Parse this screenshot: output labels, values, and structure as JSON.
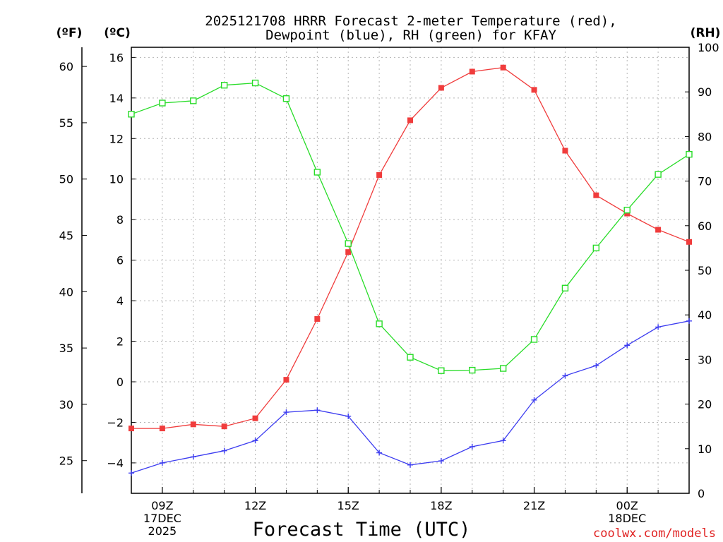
{
  "chart_data": {
    "type": "line",
    "title_line1": "2025121708 HRRR Forecast 2-meter Temperature (red),",
    "title_line2": "Dewpoint (blue), RH (green) for KFAY",
    "unit_f": "(ºF)",
    "unit_c": "(ºC)",
    "unit_rh": "(RH)",
    "xlabel": "Forecast Time (UTC)",
    "credit": "coolwx.com/models",
    "x_hours": [
      8,
      9,
      10,
      11,
      12,
      13,
      14,
      15,
      16,
      17,
      18,
      19,
      20,
      21,
      22,
      23,
      24,
      25,
      26
    ],
    "xlim": [
      8,
      26
    ],
    "ylim_c": [
      -5.5,
      16.5
    ],
    "ylim_rh": [
      0,
      100
    ],
    "x_ticks": [
      {
        "hour": 9,
        "lines": [
          "09Z",
          "17DEC",
          "2025"
        ]
      },
      {
        "hour": 12,
        "lines": [
          "12Z"
        ]
      },
      {
        "hour": 15,
        "lines": [
          "15Z"
        ]
      },
      {
        "hour": 18,
        "lines": [
          "18Z"
        ]
      },
      {
        "hour": 21,
        "lines": [
          "21Z"
        ]
      },
      {
        "hour": 24,
        "lines": [
          "00Z",
          "18DEC"
        ]
      }
    ],
    "y_ticks_c": [
      -4,
      -2,
      0,
      2,
      4,
      6,
      8,
      10,
      12,
      14,
      16
    ],
    "y_tick_labels_c": [
      "−4",
      "−2",
      "0",
      "2",
      "4",
      "6",
      "8",
      "10",
      "12",
      "14",
      "16"
    ],
    "y_ticks_f": [
      25,
      30,
      35,
      40,
      45,
      50,
      55,
      60
    ],
    "y_ticks_rh": [
      0,
      10,
      20,
      30,
      40,
      50,
      60,
      70,
      80,
      90,
      100
    ],
    "series": [
      {
        "name": "Temperature",
        "axis": "c",
        "color": "#f03c3c",
        "marker": "filled-square",
        "values": [
          -2.3,
          -2.3,
          -2.1,
          -2.2,
          -1.8,
          0.1,
          3.1,
          6.4,
          10.2,
          12.9,
          14.5,
          15.3,
          15.5,
          14.4,
          11.4,
          9.2,
          8.3,
          7.5,
          6.9
        ]
      },
      {
        "name": "Dewpoint",
        "axis": "c",
        "color": "#3c3cf0",
        "marker": "plus",
        "values": [
          -4.5,
          -4.0,
          -3.7,
          -3.4,
          -2.9,
          -1.5,
          -1.4,
          -1.7,
          -3.5,
          -4.1,
          -3.9,
          -3.2,
          -2.9,
          -0.9,
          0.3,
          0.8,
          1.8,
          2.7,
          3.0
        ]
      },
      {
        "name": "RH",
        "axis": "rh",
        "color": "#28dc28",
        "marker": "open-square",
        "values": [
          85,
          87.5,
          88,
          91.5,
          92,
          88.5,
          72,
          56,
          38,
          30.5,
          27.5,
          27.6,
          28,
          34.5,
          46,
          55,
          63.5,
          71.5,
          76
        ]
      }
    ]
  }
}
